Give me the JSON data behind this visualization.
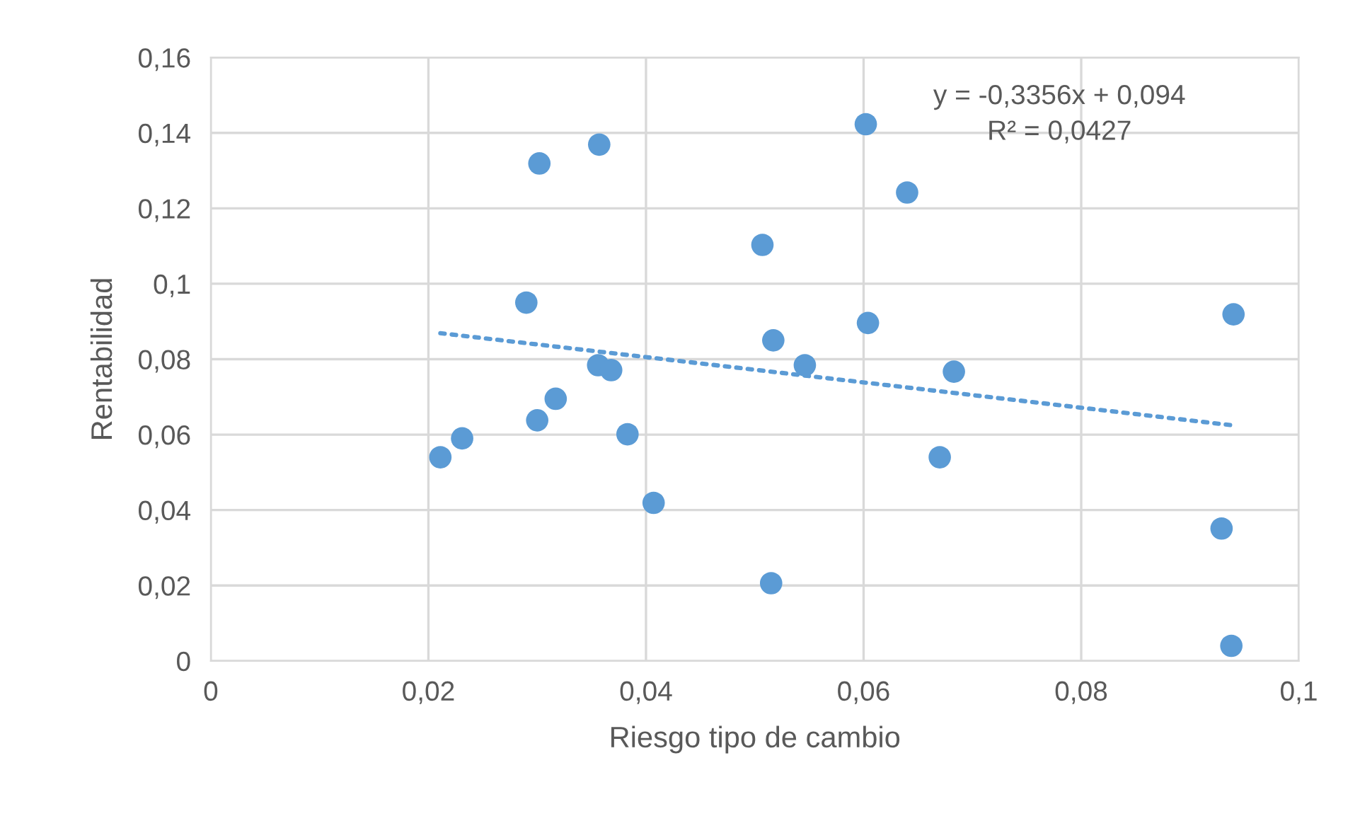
{
  "chart_data": {
    "type": "scatter",
    "xlabel": "Riesgo tipo de cambio",
    "ylabel": "Rentabilidad",
    "annotations": [
      "y = -0,3356x + 0,094\nR² = 0,0427"
    ],
    "series": [
      {
        "color": "#5b9bd5",
        "marker": "circle",
        "x": [
          0.0211,
          0.0231,
          0.0302,
          0.0357,
          0.029,
          0.0356,
          0.0368,
          0.0317,
          0.03,
          0.0383,
          0.0407,
          0.0602,
          0.064,
          0.0507,
          0.094,
          0.0517,
          0.0604,
          0.0546,
          0.0683,
          0.067,
          0.0929,
          0.0515,
          0.0938
        ],
        "values": [
          0.054,
          0.059,
          0.1319,
          0.1369,
          0.095,
          0.0784,
          0.0771,
          0.0695,
          0.0638,
          0.0601,
          0.0419,
          0.1423,
          0.1242,
          0.1103,
          0.0919,
          0.085,
          0.0896,
          0.0784,
          0.0767,
          0.054,
          0.0351,
          0.0206,
          0.004
        ]
      },
      {
        "type": "line",
        "color": "#5b9bd5",
        "line_style": "dotted",
        "x": [
          0.0211,
          0.0938
        ],
        "values": [
          0.0869,
          0.0625
        ]
      }
    ],
    "xlim": [
      0,
      0.1
    ],
    "xticks": [
      0,
      {
        "value": 0.02,
        "label": "0,02"
      },
      {
        "value": 0.04,
        "label": "0,04"
      },
      {
        "value": 0.06,
        "label": "0,06"
      },
      {
        "value": 0.08,
        "label": "0,08"
      },
      {
        "value": 0.1,
        "label": "0,1"
      }
    ],
    "ylim": [
      0,
      0.16
    ],
    "yticks": [
      0,
      {
        "value": 0.02,
        "label": "0,02"
      },
      {
        "value": 0.04,
        "label": "0,04"
      },
      {
        "value": 0.06,
        "label": "0,06"
      },
      {
        "value": 0.08,
        "label": "0,08"
      },
      {
        "value": 0.1,
        "label": "0,1"
      },
      {
        "value": 0.12,
        "label": "0,12"
      },
      {
        "value": 0.14,
        "label": "0,14"
      },
      {
        "value": 0.16,
        "label": "0,16"
      }
    ],
    "grid": true,
    "legend": false
  }
}
